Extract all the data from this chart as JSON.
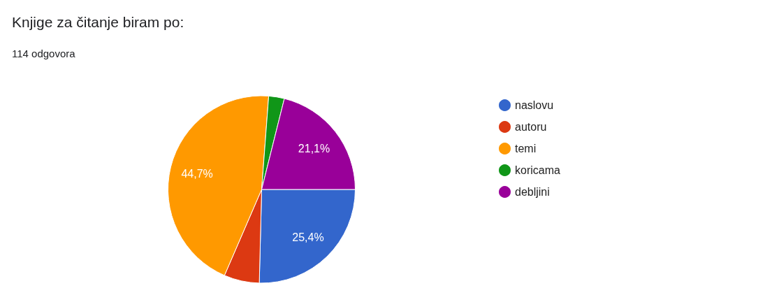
{
  "chart_data": {
    "type": "pie",
    "title": "Knjige za čitanje biram po:",
    "subtitle": "114 odgovora",
    "categories": [
      "naslovu",
      "autoru",
      "temi",
      "koricama",
      "debljini"
    ],
    "values": [
      25.4,
      6.1,
      44.7,
      2.7,
      21.1
    ],
    "colors": [
      "#3366cc",
      "#dc3912",
      "#ff9900",
      "#109618",
      "#990099"
    ],
    "value_labels": [
      "25,4%",
      null,
      "44,7%",
      null,
      "21,1%"
    ],
    "legend": "right"
  }
}
